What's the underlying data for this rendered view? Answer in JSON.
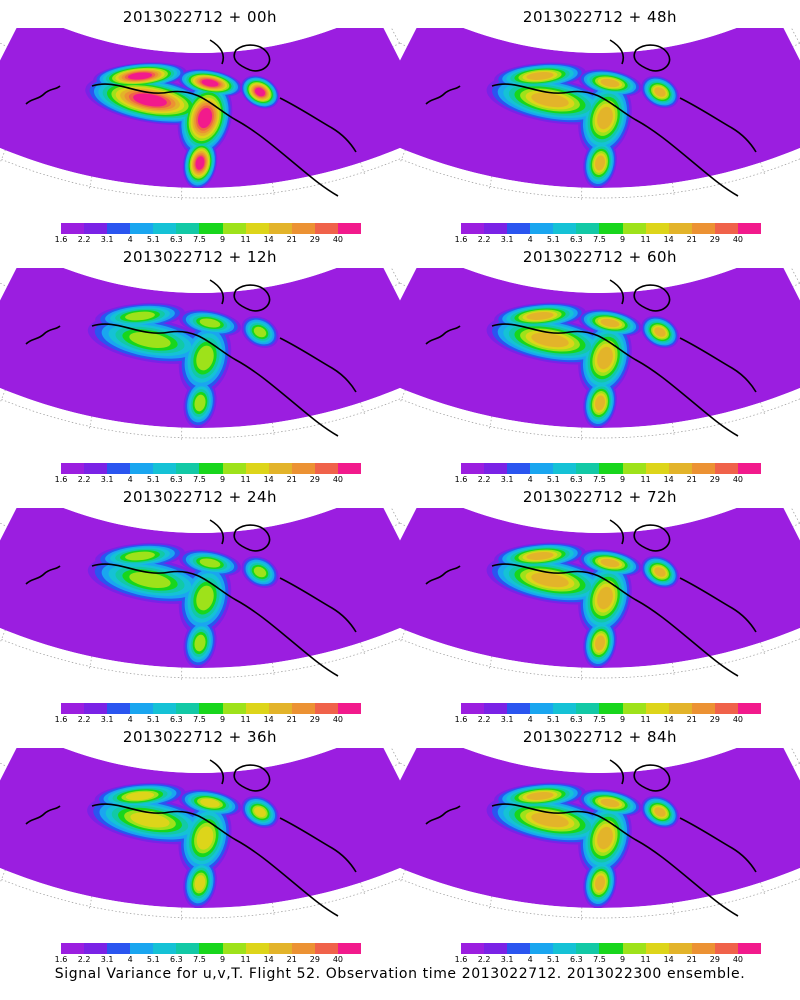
{
  "panels": [
    {
      "title": "2013022712 + 00h",
      "lead_hours": 0,
      "max_level": 12
    },
    {
      "title": "2013022712 + 48h",
      "lead_hours": 48,
      "max_level": 9
    },
    {
      "title": "2013022712 + 12h",
      "lead_hours": 12,
      "max_level": 7
    },
    {
      "title": "2013022712 + 60h",
      "lead_hours": 60,
      "max_level": 9
    },
    {
      "title": "2013022712 + 24h",
      "lead_hours": 24,
      "max_level": 7
    },
    {
      "title": "2013022712 + 72h",
      "lead_hours": 72,
      "max_level": 9
    },
    {
      "title": "2013022712 + 36h",
      "lead_hours": 36,
      "max_level": 8
    },
    {
      "title": "2013022712 + 84h",
      "lead_hours": 84,
      "max_level": 9
    }
  ],
  "colorbar": {
    "colors": [
      "#9b1ee0",
      "#7a22e6",
      "#2a55f0",
      "#1aa6f0",
      "#15c2d6",
      "#12c9a6",
      "#18d61c",
      "#9ee21a",
      "#ddd51a",
      "#e3b42a",
      "#ec9233",
      "#f0624a",
      "#f21a8c"
    ],
    "tick_labels": [
      "1.6",
      "2.2",
      "3.1",
      "4",
      "5.1",
      "6.3",
      "7.5",
      "9",
      "11",
      "14",
      "21",
      "29",
      "40"
    ]
  },
  "footer": "Signal Variance for u,v,T. Flight 52. Observation time 2013022712. 2013022300 ensemble."
}
